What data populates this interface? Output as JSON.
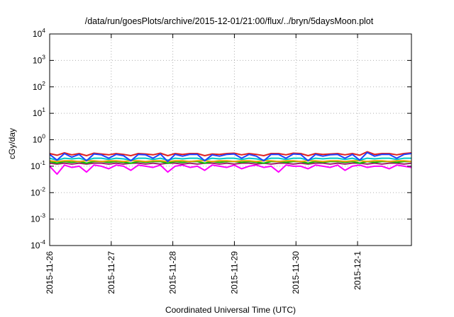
{
  "chart_data": {
    "type": "line",
    "title": "/data/run/goesPlots/archive/2015-12-01/21:00/flux/../bryn/5daysMoon.plot",
    "xlabel": "Coordinated Universal Time (UTC)",
    "ylabel": "cGy/day",
    "yscale": "log",
    "ylim": [
      0.0001,
      10000
    ],
    "xlim": [
      "2015-11-26",
      "2015-12-01 21:00"
    ],
    "grid": true,
    "y_ticks": [
      {
        "base": "10",
        "exp": "-4"
      },
      {
        "base": "10",
        "exp": "-3"
      },
      {
        "base": "10",
        "exp": "-2"
      },
      {
        "base": "10",
        "exp": "-1"
      },
      {
        "base": "10",
        "exp": "0"
      },
      {
        "base": "10",
        "exp": "1"
      },
      {
        "base": "10",
        "exp": "2"
      },
      {
        "base": "10",
        "exp": "3"
      },
      {
        "base": "10",
        "exp": "4"
      }
    ],
    "x_ticks": [
      "2015-11-26",
      "2015-11-27",
      "2015-11-28",
      "2015-11-29",
      "2015-11-30",
      "2015-12-1"
    ],
    "series": [
      {
        "color": "#ff00ff",
        "values": [
          0.1,
          0.05,
          0.11,
          0.09,
          0.1,
          0.06,
          0.11,
          0.1,
          0.08,
          0.11,
          0.1,
          0.07,
          0.11,
          0.1,
          0.09,
          0.11,
          0.06,
          0.1,
          0.11,
          0.09,
          0.1,
          0.07,
          0.11,
          0.1,
          0.09,
          0.11,
          0.08,
          0.1,
          0.11,
          0.09,
          0.1,
          0.06,
          0.11,
          0.1,
          0.1,
          0.08,
          0.11,
          0.1,
          0.09,
          0.11,
          0.07,
          0.1,
          0.11,
          0.09,
          0.1,
          0.1,
          0.08,
          0.11,
          0.1,
          0.09
        ]
      },
      {
        "color": "#a0206a",
        "values": [
          0.13,
          0.12,
          0.13,
          0.12,
          0.13,
          0.12,
          0.13,
          0.13,
          0.12,
          0.13,
          0.12,
          0.13,
          0.13,
          0.12,
          0.13,
          0.12,
          0.13,
          0.13,
          0.12,
          0.13,
          0.12,
          0.13,
          0.13,
          0.12,
          0.13,
          0.12,
          0.13,
          0.13,
          0.12,
          0.13,
          0.12,
          0.13,
          0.13,
          0.12,
          0.13,
          0.12,
          0.13,
          0.13,
          0.12,
          0.13,
          0.12,
          0.13,
          0.13,
          0.12,
          0.13,
          0.12,
          0.13,
          0.13,
          0.12,
          0.13
        ]
      },
      {
        "color": "#00c000",
        "values": [
          0.15,
          0.13,
          0.15,
          0.14,
          0.15,
          0.13,
          0.15,
          0.15,
          0.14,
          0.15,
          0.14,
          0.13,
          0.15,
          0.14,
          0.15,
          0.15,
          0.13,
          0.15,
          0.14,
          0.15,
          0.15,
          0.13,
          0.15,
          0.14,
          0.15,
          0.15,
          0.14,
          0.15,
          0.14,
          0.13,
          0.15,
          0.15,
          0.14,
          0.15,
          0.15,
          0.13,
          0.15,
          0.14,
          0.15,
          0.15,
          0.14,
          0.15,
          0.13,
          0.15,
          0.14,
          0.15,
          0.15,
          0.14,
          0.15,
          0.15
        ]
      },
      {
        "color": "#e8a000",
        "values": [
          0.16,
          0.15,
          0.16,
          0.16,
          0.15,
          0.16,
          0.16,
          0.15,
          0.16,
          0.16,
          0.15,
          0.16,
          0.16,
          0.15,
          0.16,
          0.16,
          0.15,
          0.16,
          0.16,
          0.15,
          0.16,
          0.16,
          0.15,
          0.16,
          0.16,
          0.15,
          0.16,
          0.16,
          0.15,
          0.16,
          0.16,
          0.15,
          0.16,
          0.16,
          0.15,
          0.16,
          0.16,
          0.15,
          0.16,
          0.16,
          0.15,
          0.16,
          0.16,
          0.15,
          0.16,
          0.16,
          0.15,
          0.16,
          0.16,
          0.15
        ]
      },
      {
        "color": "#00c8c8",
        "values": [
          0.2,
          0.17,
          0.2,
          0.19,
          0.2,
          0.17,
          0.2,
          0.2,
          0.18,
          0.2,
          0.19,
          0.17,
          0.2,
          0.2,
          0.18,
          0.2,
          0.17,
          0.2,
          0.19,
          0.2,
          0.2,
          0.17,
          0.2,
          0.19,
          0.2,
          0.2,
          0.18,
          0.2,
          0.19,
          0.17,
          0.2,
          0.2,
          0.18,
          0.2,
          0.2,
          0.17,
          0.2,
          0.19,
          0.2,
          0.2,
          0.18,
          0.2,
          0.17,
          0.2,
          0.19,
          0.2,
          0.2,
          0.18,
          0.2,
          0.2
        ]
      },
      {
        "color": "#e02020",
        "values": [
          0.3,
          0.26,
          0.32,
          0.27,
          0.3,
          0.25,
          0.31,
          0.29,
          0.27,
          0.3,
          0.28,
          0.25,
          0.3,
          0.29,
          0.27,
          0.31,
          0.25,
          0.3,
          0.28,
          0.3,
          0.3,
          0.25,
          0.29,
          0.28,
          0.3,
          0.31,
          0.27,
          0.3,
          0.28,
          0.25,
          0.3,
          0.3,
          0.27,
          0.31,
          0.3,
          0.25,
          0.3,
          0.28,
          0.29,
          0.3,
          0.27,
          0.3,
          0.26,
          0.35,
          0.28,
          0.3,
          0.3,
          0.27,
          0.3,
          0.32
        ]
      },
      {
        "color": "#2040ff",
        "values": [
          0.28,
          0.17,
          0.3,
          0.22,
          0.28,
          0.16,
          0.29,
          0.27,
          0.2,
          0.28,
          0.25,
          0.16,
          0.28,
          0.27,
          0.2,
          0.29,
          0.15,
          0.28,
          0.24,
          0.28,
          0.28,
          0.16,
          0.27,
          0.24,
          0.28,
          0.29,
          0.2,
          0.28,
          0.24,
          0.16,
          0.28,
          0.28,
          0.2,
          0.29,
          0.28,
          0.16,
          0.28,
          0.24,
          0.27,
          0.28,
          0.2,
          0.28,
          0.17,
          0.33,
          0.24,
          0.28,
          0.28,
          0.2,
          0.28,
          0.3
        ]
      }
    ]
  }
}
